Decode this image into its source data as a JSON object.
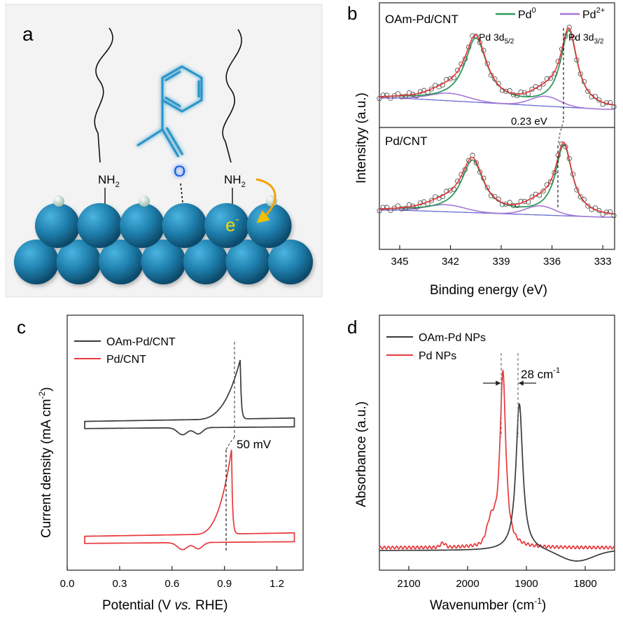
{
  "colors": {
    "black": "#3a3a3a",
    "red": "#e8383b",
    "green": "#2e9a5c",
    "purple": "#a678d6",
    "pd_blue": "#1f7fad",
    "pd_blue_dark": "#0c4a6a",
    "molecule": "#2a94c7",
    "oxygen": "#1156e6",
    "electron_arrow": "#f2a300",
    "electron_text": "#f2d600",
    "panel_a_bg": "#f3f3f3"
  },
  "panel_a": {
    "letter": "a",
    "ligand_label_left": "NH",
    "ligand_label_right": "NH",
    "ligand_subscript": "2",
    "oxygen_label": "O",
    "electron_label": "e",
    "electron_superscript": "-"
  },
  "chart_data": [
    {
      "panel": "b",
      "type": "line",
      "xlabel": "Binding energy (eV)",
      "ylabel": "Intensityy (a.u.)",
      "xlim": [
        346.2,
        332.3
      ],
      "xticks": [
        345,
        342,
        339,
        336,
        333
      ],
      "x_reversed": true,
      "subplots": [
        {
          "label": "OAm-Pd/CNT",
          "peaks": [
            {
              "name": "Pd 3d5/2",
              "label_main": "Pd 3d",
              "label_sub": "5/2",
              "position_eV": 340.5
            },
            {
              "name": "Pd 3d3/2",
              "label_main": "Pd 3d",
              "label_sub": "3/2",
              "position_eV": 335.0
            }
          ]
        },
        {
          "label": "Pd/CNT",
          "peaks": [
            {
              "name": "Pd 3d5/2",
              "position_eV": 340.7
            },
            {
              "name": "Pd 3d3/2",
              "position_eV": 335.3
            }
          ]
        }
      ],
      "legend": [
        {
          "name": "Pd",
          "sup": "0",
          "color": "#2e9a5c"
        },
        {
          "name": "Pd",
          "sup": "2+",
          "color": "#a678d6"
        }
      ],
      "annotation": "0.23 eV",
      "shift_eV": 0.23
    },
    {
      "panel": "c",
      "type": "line",
      "xlabel_main": "Potential (V ",
      "xlabel_italic": "vs.",
      "xlabel_end": " RHE)",
      "ylabel_main": "Current density (mA cm",
      "ylabel_sup": "-2",
      "ylabel_end": ")",
      "xlim": [
        0.0,
        1.35
      ],
      "xticks": [
        "0.0",
        "0.3",
        "0.6",
        "0.9",
        "1.2"
      ],
      "series": [
        {
          "name": "OAm-Pd/CNT",
          "color": "#3a3a3a",
          "peak_potential_V": 0.99
        },
        {
          "name": "Pd/CNT",
          "color": "#e8383b",
          "peak_potential_V": 0.94
        }
      ],
      "annotation": "50 mV",
      "shift_mV": 50
    },
    {
      "panel": "d",
      "type": "line",
      "xlabel_main": "Wavenumber (cm",
      "xlabel_sup": "-1",
      "xlabel_end": ")",
      "ylabel": "Absorbance (a.u.)",
      "xlim": [
        2150,
        1750
      ],
      "xticks": [
        2100,
        2000,
        1900,
        1800
      ],
      "x_reversed": true,
      "series": [
        {
          "name": "OAm-Pd NPs",
          "color": "#3a3a3a",
          "peak_cm1": 1912
        },
        {
          "name": "Pd NPs",
          "color": "#e8383b",
          "peak_cm1": 1940
        }
      ],
      "annotation_main": "28 cm",
      "annotation_sup": "-1",
      "shift_cm1": 28
    }
  ]
}
